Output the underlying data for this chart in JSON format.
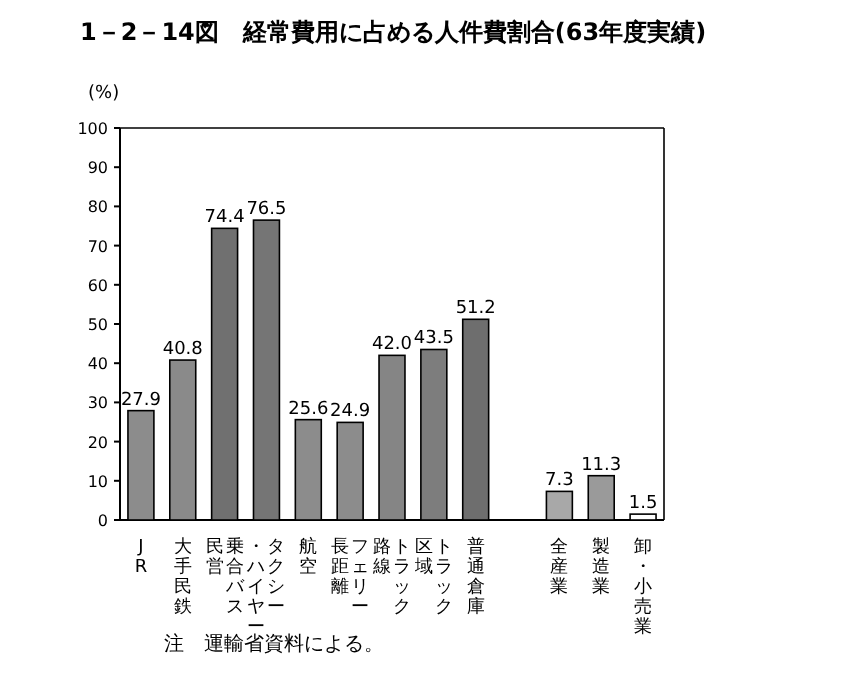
{
  "chart_data": {
    "type": "bar",
    "title": "1－2－14図　経常費用に占める人件費割合(63年度実績)",
    "ylabel": "(%)",
    "categories": [
      "JR",
      "大手民鉄",
      "乗合バス民営",
      "タクシー・ハイヤー",
      "航空",
      "フェリー長距離",
      "トラック路線",
      "トラック区域",
      "普通倉庫",
      null,
      "全産業",
      "製造業",
      "卸・小売業"
    ],
    "values": [
      27.9,
      40.8,
      74.4,
      76.5,
      25.6,
      24.9,
      42.0,
      43.5,
      51.2,
      null,
      7.3,
      11.3,
      1.5
    ],
    "value_labels": [
      "27.9",
      "40.8",
      "74.4",
      "76.5",
      "25.6",
      "24.9",
      "42.0",
      "43.5",
      "51.2",
      null,
      "7.3",
      "11.3",
      "1.5"
    ],
    "colors": [
      "#8c8c8c",
      "#8a8a8a",
      "#707070",
      "#757575",
      "#8c8c8c",
      "#8c8c8c",
      "#858585",
      "#7d7d7d",
      "#6e6e6e",
      null,
      "#a8a8a8",
      "#9a9a9a",
      "#ffffff"
    ],
    "ylim": [
      0,
      100
    ],
    "yticks": [
      0,
      10,
      20,
      30,
      40,
      50,
      60,
      70,
      80,
      90,
      100
    ],
    "grid": false,
    "annotations": [
      "注　運輸省資料による。"
    ]
  }
}
